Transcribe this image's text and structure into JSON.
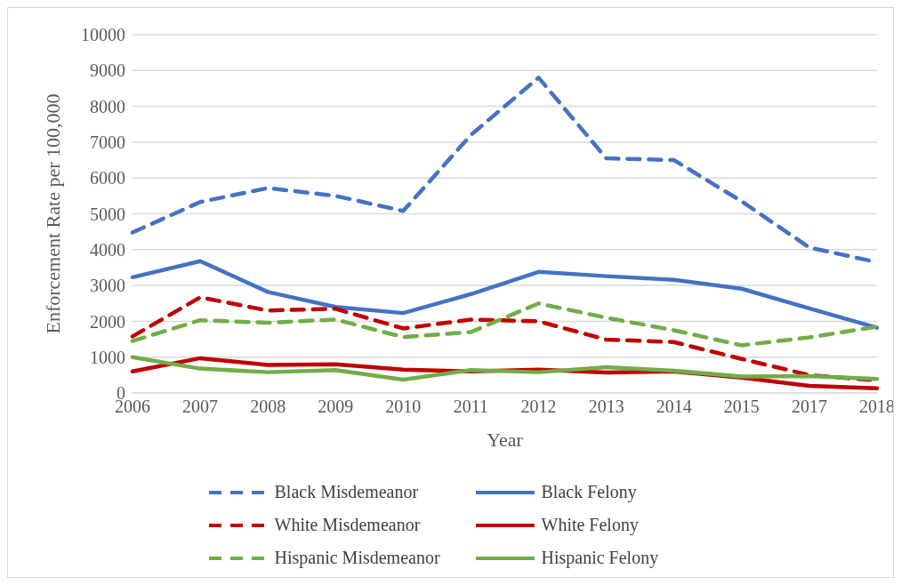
{
  "chart_data": {
    "type": "line",
    "xlabel": "Year",
    "ylabel": "Enforcement Rate per 100,000",
    "categories": [
      "2006",
      "2007",
      "2008",
      "2009",
      "2010",
      "2011",
      "2012",
      "2013",
      "2014",
      "2015",
      "2017",
      "2018"
    ],
    "ylim": [
      0,
      10000
    ],
    "yticks": [
      0,
      1000,
      2000,
      3000,
      4000,
      5000,
      6000,
      7000,
      8000,
      9000,
      10000
    ],
    "grid": "y",
    "legend": "bottom",
    "marker": "none",
    "series": [
      {
        "name": "Black Misdemeanor",
        "color": "#4472c4",
        "line_style": "dashed",
        "values": [
          4480,
          5330,
          5720,
          5500,
          5080,
          7200,
          8800,
          6550,
          6500,
          5350,
          4060,
          3650
        ]
      },
      {
        "name": "Black Felony",
        "color": "#4472c4",
        "line_style": "solid",
        "values": [
          3230,
          3680,
          2820,
          2400,
          2230,
          2760,
          3380,
          3260,
          3160,
          2910,
          2360,
          1820
        ]
      },
      {
        "name": "White Misdemeanor",
        "color": "#c00000",
        "line_style": "dashed",
        "values": [
          1580,
          2670,
          2300,
          2350,
          1800,
          2050,
          2000,
          1490,
          1420,
          950,
          500,
          350
        ]
      },
      {
        "name": "White Felony",
        "color": "#c00000",
        "line_style": "solid",
        "values": [
          600,
          970,
          780,
          800,
          650,
          600,
          650,
          570,
          600,
          430,
          200,
          130
        ]
      },
      {
        "name": "Hispanic Misdemeanor",
        "color": "#70ad47",
        "line_style": "dashed",
        "values": [
          1450,
          2030,
          1960,
          2050,
          1560,
          1700,
          2500,
          2100,
          1750,
          1330,
          1550,
          1850
        ]
      },
      {
        "name": "Hispanic Felony",
        "color": "#70ad47",
        "line_style": "solid",
        "values": [
          1000,
          680,
          580,
          640,
          370,
          640,
          580,
          720,
          620,
          460,
          470,
          390
        ]
      }
    ]
  }
}
